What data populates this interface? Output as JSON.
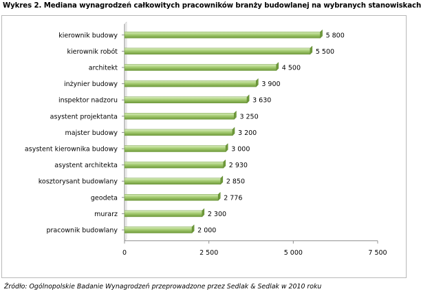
{
  "title": "Wykres 2. Mediana wynagrodzeń całkowitych pracowników branży budowlanej na wybranych stanowiskach",
  "source": "Źródło: Ogólnopolskie Badanie Wynagrodzeń przeprowadzone przez Sedlak & Sedlak w 2010 roku",
  "colors": {
    "bar_light": "#dbeec0",
    "bar_mid": "#a6cd73",
    "bar_dark": "#6f9a3b",
    "axis": "#8c8c8c"
  },
  "chart_data": {
    "type": "bar",
    "orientation": "horizontal",
    "categories": [
      "kierownik budowy",
      "kierownik robót",
      "architekt",
      "inżynier budowy",
      "inspektor nadzoru",
      "asystent projektanta",
      "majster budowy",
      "asystent kierownika budowy",
      "asystent architekta",
      "kosztorysant budowlany",
      "geodeta",
      "murarz",
      "pracownik budowlany"
    ],
    "values": [
      5800,
      5500,
      4500,
      3900,
      3630,
      3250,
      3200,
      3000,
      2930,
      2850,
      2776,
      2300,
      2000
    ],
    "value_labels": [
      "5 800",
      "5 500",
      "4 500",
      "3 900",
      "3 630",
      "3 250",
      "3 200",
      "3 000",
      "2 930",
      "2 850",
      "2 776",
      "2 300",
      "2 000"
    ],
    "xlim": [
      0,
      7500
    ],
    "x_ticks": [
      0,
      2500,
      5000,
      7500
    ],
    "x_tick_labels": [
      "0",
      "2 500",
      "5 000",
      "7 500"
    ],
    "grid": false,
    "legend": false
  }
}
